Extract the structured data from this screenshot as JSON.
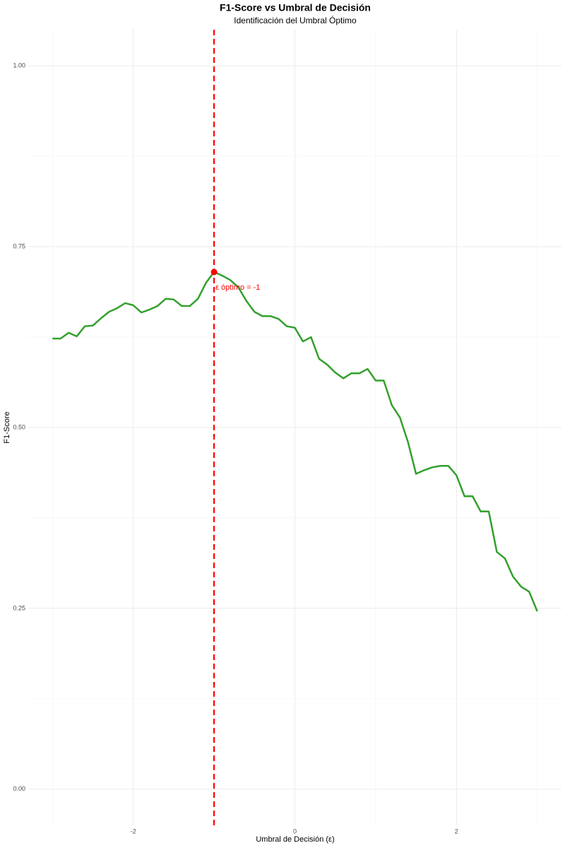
{
  "chart_data": {
    "type": "line",
    "title": "F1-Score vs Umbral de Decisión",
    "subtitle": "Identificación del Umbral Óptimo",
    "x_label": "Umbral de Decisión (ε)",
    "y_label": "F1-Score",
    "x": [
      -3.0,
      -2.9,
      -2.8,
      -2.7,
      -2.6,
      -2.5,
      -2.4,
      -2.3,
      -2.2,
      -2.1,
      -2.0,
      -1.9,
      -1.8,
      -1.7,
      -1.6,
      -1.5,
      -1.4,
      -1.3,
      -1.2,
      -1.1,
      -1.0,
      -0.9,
      -0.8,
      -0.7,
      -0.6,
      -0.5,
      -0.4,
      -0.3,
      -0.2,
      -0.1,
      0.0,
      0.1,
      0.2,
      0.3,
      0.4,
      0.5,
      0.6,
      0.7,
      0.8,
      0.9,
      1.0,
      1.1,
      1.2,
      1.3,
      1.4,
      1.5,
      1.6,
      1.7,
      1.8,
      1.9,
      2.0,
      2.1,
      2.2,
      2.3,
      2.4,
      2.5,
      2.6,
      2.7,
      2.8,
      2.9,
      3.0
    ],
    "series": [
      {
        "name": "F1-Score",
        "color": "#33a02c",
        "values": [
          0.623,
          0.623,
          0.631,
          0.626,
          0.64,
          0.641,
          0.651,
          0.66,
          0.665,
          0.672,
          0.669,
          0.659,
          0.663,
          0.668,
          0.678,
          0.677,
          0.668,
          0.668,
          0.678,
          0.7,
          0.715,
          0.71,
          0.704,
          0.694,
          0.675,
          0.66,
          0.654,
          0.654,
          0.65,
          0.64,
          0.638,
          0.619,
          0.625,
          0.595,
          0.587,
          0.576,
          0.568,
          0.575,
          0.575,
          0.581,
          0.565,
          0.565,
          0.531,
          0.514,
          0.48,
          0.436,
          0.441,
          0.445,
          0.447,
          0.447,
          0.434,
          0.405,
          0.405,
          0.384,
          0.384,
          0.328,
          0.319,
          0.294,
          0.28,
          0.273,
          0.246
        ]
      }
    ],
    "optimum": {
      "x": -1,
      "y": 0.715,
      "color": "#ff0000",
      "label": "ε óptimo = -1"
    },
    "xlim": [
      -3.3,
      3.3
    ],
    "ylim": [
      -0.05,
      1.05
    ],
    "xticks": [
      -2,
      0,
      2
    ],
    "yticks": [
      {
        "value": 0,
        "label": "0.00"
      },
      0.25,
      {
        "value": 0.5,
        "label": "0.50"
      },
      0.75,
      {
        "value": 1,
        "label": "1.00"
      }
    ],
    "x_minor_grid": [
      -3,
      -1,
      1,
      3
    ],
    "y_minor_grid": [
      0.125,
      0.375,
      0.625,
      0.875
    ],
    "grid": true
  }
}
